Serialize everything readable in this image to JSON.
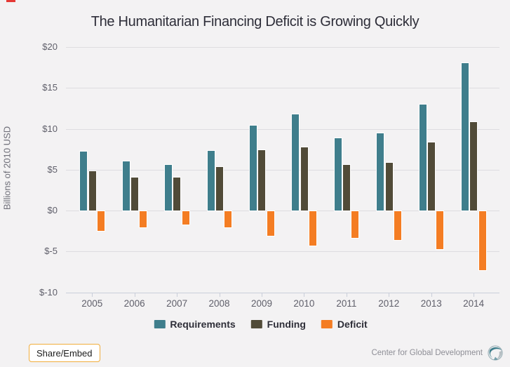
{
  "chart_data": {
    "type": "bar",
    "title": "The Humanitarian Financing Deficit is Growing Quickly",
    "xlabel": "",
    "ylabel": "Billions of 2010 USD",
    "ylim": [
      -10,
      20
    ],
    "grid": true,
    "legend_position": "bottom",
    "yticks": [
      {
        "label": "$20",
        "value": 20
      },
      {
        "label": "$15",
        "value": 15
      },
      {
        "label": "$10",
        "value": 10
      },
      {
        "label": "$5",
        "value": 5
      },
      {
        "label": "$0",
        "value": 0
      },
      {
        "label": "$-5",
        "value": -5
      },
      {
        "label": "$-10",
        "value": -10
      }
    ],
    "categories": [
      "2005",
      "2006",
      "2007",
      "2008",
      "2009",
      "2010",
      "2011",
      "2012",
      "2013",
      "2014"
    ],
    "series": [
      {
        "name": "Requirements",
        "color": "#3f7e8c",
        "values": [
          7.2,
          6.0,
          5.6,
          7.3,
          10.4,
          11.8,
          8.8,
          9.4,
          13.0,
          18.0
        ]
      },
      {
        "name": "Funding",
        "color": "#514b38",
        "values": [
          4.8,
          4.0,
          4.0,
          5.3,
          7.4,
          7.7,
          5.6,
          5.8,
          8.3,
          10.8
        ]
      },
      {
        "name": "Deficit",
        "color": "#f47d23",
        "values": [
          -2.4,
          -2.0,
          -1.6,
          -2.0,
          -3.0,
          -4.2,
          -3.3,
          -3.5,
          -4.6,
          -7.2
        ]
      }
    ]
  },
  "footer": {
    "share_button": "Share/Embed",
    "share_accent": "#f0ad3b",
    "attribution": "Center for Global Development",
    "logo_icon": "globe-swirl"
  }
}
